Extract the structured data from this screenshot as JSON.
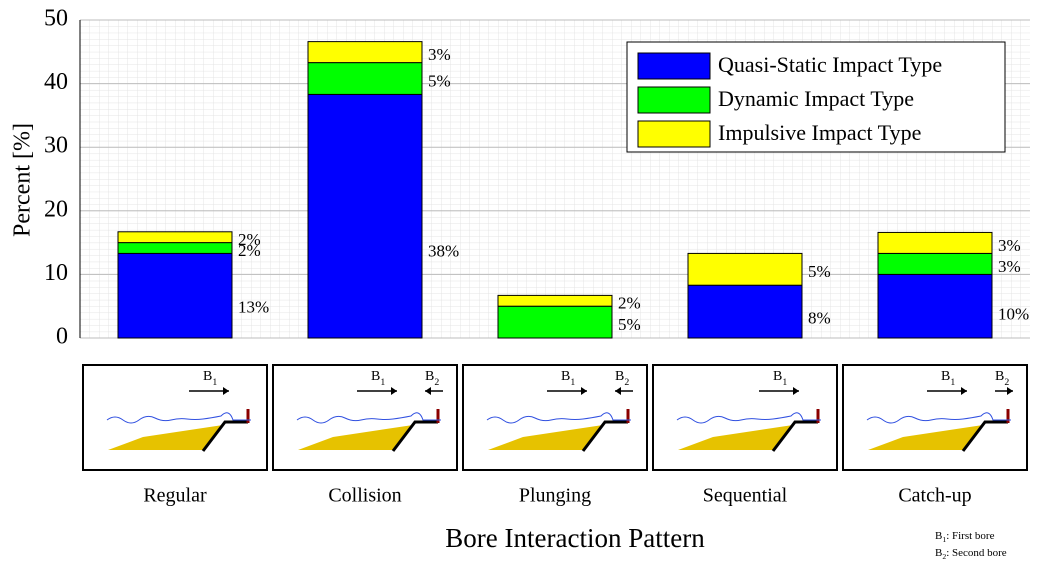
{
  "chart_data": {
    "type": "stacked_bar",
    "categories": [
      "Regular",
      "Collision",
      "Plunging",
      "Sequential",
      "Catch-up"
    ],
    "series": [
      {
        "name": "Quasi-Static Impact Type",
        "color": "#0000ff",
        "values": [
          13.3,
          38.3,
          0,
          8.3,
          10
        ],
        "value_labels": [
          "13%",
          "38%",
          null,
          "8%",
          "10%"
        ]
      },
      {
        "name": "Dynamic Impact Type",
        "color": "#00ff00",
        "values": [
          1.7,
          5,
          5,
          0,
          3.3
        ],
        "value_labels": [
          "2%",
          "5%",
          "5%",
          null,
          "3%"
        ]
      },
      {
        "name": "Impulsive Impact Type",
        "color": "#ffff00",
        "values": [
          1.7,
          3.3,
          1.7,
          5,
          3.3
        ],
        "value_labels": [
          "2%",
          "3%",
          "2%",
          "5%",
          "3%"
        ]
      }
    ],
    "ylabel": "Percent [%]",
    "xlabel": "Bore Interaction Pattern",
    "ylim": [
      0,
      50
    ],
    "yticks": [
      0,
      10,
      20,
      30,
      40,
      50
    ],
    "grid": true,
    "legend": "top-right",
    "panels": [
      [
        {
          "base": "B",
          "sub": "1"
        }
      ],
      [
        {
          "base": "B",
          "sub": "1"
        },
        {
          "base": "B",
          "sub": "2"
        }
      ],
      [
        {
          "base": "B",
          "sub": "1"
        },
        {
          "base": "B",
          "sub": "2"
        }
      ],
      [
        {
          "base": "B",
          "sub": "1"
        }
      ],
      [
        {
          "base": "B",
          "sub": "1"
        },
        {
          "base": "B",
          "sub": "2"
        }
      ]
    ],
    "notes": [
      {
        "base": "B",
        "sub": "1",
        "text": ": First bore"
      },
      {
        "base": "B",
        "sub": "2",
        "text": ": Second bore"
      }
    ]
  }
}
